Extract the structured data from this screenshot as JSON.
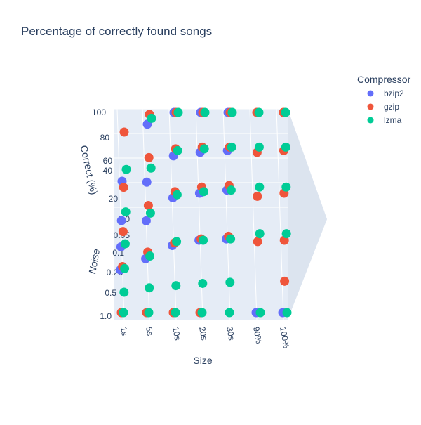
{
  "chart_data": {
    "type": "scatter",
    "title": "Percentage of correctly found songs",
    "xlabel": "Size",
    "ylabel": "Correct (%)",
    "zlabel": "Noise",
    "x_categories": [
      "1s",
      "5s",
      "10s",
      "20s",
      "30s",
      "90%",
      "100%"
    ],
    "y_ticks": [
      "20",
      "40",
      "60",
      "80",
      "100"
    ],
    "z_ticks": [
      "0.0",
      "0.05",
      "0.1",
      "0.25",
      "0.5",
      "1.0"
    ],
    "ylim": [
      0,
      100
    ],
    "legend": {
      "title": "Compressor",
      "placement": "top-right"
    },
    "series": [
      {
        "name": "bzip2",
        "color": "#636efa",
        "points": [
          {
            "x": "1s",
            "noise": "0.0",
            "y": 30
          },
          {
            "x": "1s",
            "noise": "0.05",
            "y": 12
          },
          {
            "x": "1s",
            "noise": "0.1",
            "y": 6
          },
          {
            "x": "1s",
            "noise": "0.25",
            "y": 3
          },
          {
            "x": "5s",
            "noise": "0.0",
            "y": 88
          },
          {
            "x": "5s",
            "noise": "0.05",
            "y": 56
          },
          {
            "x": "5s",
            "noise": "0.1",
            "y": 40
          },
          {
            "x": "5s",
            "noise": "0.25",
            "y": 20
          },
          {
            "x": "10s",
            "noise": "0.0",
            "y": 100
          },
          {
            "x": "10s",
            "noise": "0.05",
            "y": 86
          },
          {
            "x": "10s",
            "noise": "0.1",
            "y": 70
          },
          {
            "x": "10s",
            "noise": "0.25",
            "y": 40
          },
          {
            "x": "20s",
            "noise": "0.0",
            "y": 100
          },
          {
            "x": "20s",
            "noise": "0.05",
            "y": 90
          },
          {
            "x": "20s",
            "noise": "0.1",
            "y": 76
          },
          {
            "x": "20s",
            "noise": "0.25",
            "y": 48
          },
          {
            "x": "30s",
            "noise": "0.0",
            "y": 100
          },
          {
            "x": "30s",
            "noise": "0.05",
            "y": 92
          },
          {
            "x": "30s",
            "noise": "0.1",
            "y": 80
          },
          {
            "x": "30s",
            "noise": "0.25",
            "y": 50
          },
          {
            "x": "90%",
            "noise": "1.0",
            "y": 0
          },
          {
            "x": "100%",
            "noise": "1.0",
            "y": 0
          }
        ]
      },
      {
        "name": "gzip",
        "color": "#ef553b",
        "points": [
          {
            "x": "1s",
            "noise": "0.0",
            "y": 80
          },
          {
            "x": "1s",
            "noise": "0.05",
            "y": 50
          },
          {
            "x": "1s",
            "noise": "0.1",
            "y": 26
          },
          {
            "x": "1s",
            "noise": "0.25",
            "y": 8
          },
          {
            "x": "5s",
            "noise": "0.0",
            "y": 98
          },
          {
            "x": "5s",
            "noise": "0.05",
            "y": 84
          },
          {
            "x": "5s",
            "noise": "0.1",
            "y": 60
          },
          {
            "x": "5s",
            "noise": "0.25",
            "y": 30
          },
          {
            "x": "10s",
            "noise": "0.0",
            "y": 100
          },
          {
            "x": "10s",
            "noise": "0.05",
            "y": 94
          },
          {
            "x": "10s",
            "noise": "0.1",
            "y": 78
          },
          {
            "x": "10s",
            "noise": "0.25",
            "y": 44
          },
          {
            "x": "20s",
            "noise": "0.0",
            "y": 100
          },
          {
            "x": "20s",
            "noise": "0.05",
            "y": 96
          },
          {
            "x": "20s",
            "noise": "0.1",
            "y": 84
          },
          {
            "x": "20s",
            "noise": "0.25",
            "y": 50
          },
          {
            "x": "30s",
            "noise": "0.0",
            "y": 100
          },
          {
            "x": "30s",
            "noise": "0.05",
            "y": 96
          },
          {
            "x": "30s",
            "noise": "0.1",
            "y": 86
          },
          {
            "x": "30s",
            "noise": "0.25",
            "y": 54
          },
          {
            "x": "90%",
            "noise": "0.0",
            "y": 100
          },
          {
            "x": "90%",
            "noise": "0.05",
            "y": 90
          },
          {
            "x": "90%",
            "noise": "0.1",
            "y": 72
          },
          {
            "x": "90%",
            "noise": "0.25",
            "y": 46
          },
          {
            "x": "100%",
            "noise": "0.0",
            "y": 100
          },
          {
            "x": "100%",
            "noise": "0.05",
            "y": 92
          },
          {
            "x": "100%",
            "noise": "0.1",
            "y": 76
          },
          {
            "x": "100%",
            "noise": "0.25",
            "y": 48
          },
          {
            "x": "100%",
            "noise": "0.5",
            "y": 20
          },
          {
            "x": "1s",
            "noise": "1.0",
            "y": 0
          },
          {
            "x": "5s",
            "noise": "1.0",
            "y": 0
          },
          {
            "x": "10s",
            "noise": "1.0",
            "y": 0
          },
          {
            "x": "20s",
            "noise": "1.0",
            "y": 0
          }
        ]
      },
      {
        "name": "lzma",
        "color": "#00cc96",
        "points": [
          {
            "x": "1s",
            "noise": "0.0",
            "y": 42
          },
          {
            "x": "1s",
            "noise": "0.05",
            "y": 22
          },
          {
            "x": "1s",
            "noise": "0.1",
            "y": 10
          },
          {
            "x": "1s",
            "noise": "0.25",
            "y": 5
          },
          {
            "x": "1s",
            "noise": "0.5",
            "y": 0
          },
          {
            "x": "5s",
            "noise": "0.0",
            "y": 94
          },
          {
            "x": "5s",
            "noise": "0.05",
            "y": 72
          },
          {
            "x": "5s",
            "noise": "0.1",
            "y": 50
          },
          {
            "x": "5s",
            "noise": "0.25",
            "y": 24
          },
          {
            "x": "5s",
            "noise": "0.5",
            "y": 8
          },
          {
            "x": "10s",
            "noise": "0.0",
            "y": 100
          },
          {
            "x": "10s",
            "noise": "0.05",
            "y": 92
          },
          {
            "x": "10s",
            "noise": "0.1",
            "y": 74
          },
          {
            "x": "10s",
            "noise": "0.25",
            "y": 46
          },
          {
            "x": "10s",
            "noise": "0.5",
            "y": 12
          },
          {
            "x": "20s",
            "noise": "0.0",
            "y": 100
          },
          {
            "x": "20s",
            "noise": "0.05",
            "y": 94
          },
          {
            "x": "20s",
            "noise": "0.1",
            "y": 78
          },
          {
            "x": "20s",
            "noise": "0.25",
            "y": 48
          },
          {
            "x": "20s",
            "noise": "0.5",
            "y": 16
          },
          {
            "x": "30s",
            "noise": "0.0",
            "y": 100
          },
          {
            "x": "30s",
            "noise": "0.05",
            "y": 96
          },
          {
            "x": "30s",
            "noise": "0.1",
            "y": 80
          },
          {
            "x": "30s",
            "noise": "0.25",
            "y": 50
          },
          {
            "x": "30s",
            "noise": "0.5",
            "y": 18
          },
          {
            "x": "90%",
            "noise": "0.0",
            "y": 100
          },
          {
            "x": "90%",
            "noise": "0.05",
            "y": 96
          },
          {
            "x": "90%",
            "noise": "0.1",
            "y": 84
          },
          {
            "x": "90%",
            "noise": "0.25",
            "y": 58
          },
          {
            "x": "100%",
            "noise": "0.0",
            "y": 100
          },
          {
            "x": "100%",
            "noise": "0.05",
            "y": 96
          },
          {
            "x": "100%",
            "noise": "0.1",
            "y": 84
          },
          {
            "x": "100%",
            "noise": "0.25",
            "y": 58
          },
          {
            "x": "1s",
            "noise": "1.0",
            "y": 0
          },
          {
            "x": "5s",
            "noise": "1.0",
            "y": 0
          },
          {
            "x": "10s",
            "noise": "1.0",
            "y": 0
          },
          {
            "x": "20s",
            "noise": "1.0",
            "y": 0
          },
          {
            "x": "30s",
            "noise": "1.0",
            "y": 0
          },
          {
            "x": "90%",
            "noise": "1.0",
            "y": 0
          },
          {
            "x": "100%",
            "noise": "1.0",
            "y": 0
          }
        ]
      }
    ]
  }
}
